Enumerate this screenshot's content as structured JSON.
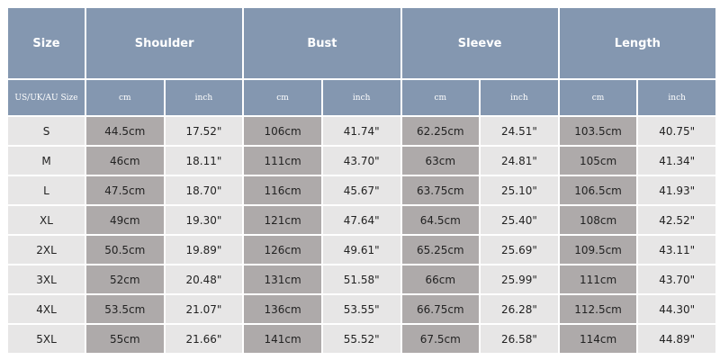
{
  "table": {
    "header": [
      "Size",
      "Shoulder",
      "Bust",
      "Sleeve",
      "Length"
    ],
    "subheader": [
      "US/UK/AU Size",
      "cm",
      "inch",
      "cm",
      "inch",
      "cm",
      "inch",
      "cm",
      "inch"
    ],
    "rows": [
      [
        "S",
        "44.5cm",
        "17.52\"",
        "106cm",
        "41.74\"",
        "62.25cm",
        "24.51\"",
        "103.5cm",
        "40.75\""
      ],
      [
        "M",
        "46cm",
        "18.11\"",
        "111cm",
        "43.70\"",
        "63cm",
        "24.81\"",
        "105cm",
        "41.34\""
      ],
      [
        "L",
        "47.5cm",
        "18.70\"",
        "116cm",
        "45.67\"",
        "63.75cm",
        "25.10\"",
        "106.5cm",
        "41.93\""
      ],
      [
        "XL",
        "49cm",
        "19.30\"",
        "121cm",
        "47.64\"",
        "64.5cm",
        "25.40\"",
        "108cm",
        "42.52\""
      ],
      [
        "2XL",
        "50.5cm",
        "19.89\"",
        "126cm",
        "49.61\"",
        "65.25cm",
        "25.69\"",
        "109.5cm",
        "43.11\""
      ],
      [
        "3XL",
        "52cm",
        "20.48\"",
        "131cm",
        "51.58\"",
        "66cm",
        "25.99\"",
        "111cm",
        "43.70\""
      ],
      [
        "4XL",
        "53.5cm",
        "21.07\"",
        "136cm",
        "53.55\"",
        "66.75cm",
        "26.28\"",
        "112.5cm",
        "44.30\""
      ],
      [
        "5XL",
        "55cm",
        "21.66\"",
        "141cm",
        "55.52\"",
        "67.5cm",
        "26.58\"",
        "114cm",
        "44.89\""
      ]
    ]
  }
}
